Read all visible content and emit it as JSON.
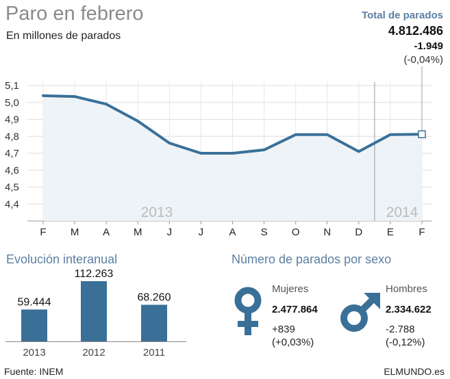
{
  "header": {
    "title": "Paro en febrero",
    "subtitle": "En millones de parados"
  },
  "total": {
    "label": "Total de parados",
    "value": "4.812.486",
    "change": "-1.949",
    "change_pct": "(-0,04%)"
  },
  "colors": {
    "line": "#3a7098",
    "area": "#eef3f7",
    "bar": "#3a7098",
    "accent_text": "#5c7fa3",
    "icon": "#3a7098"
  },
  "chart_data": [
    {
      "type": "line",
      "title": "Paro en febrero",
      "ylabel": "En millones de parados",
      "x": [
        "F",
        "M",
        "A",
        "M",
        "J",
        "J",
        "A",
        "S",
        "O",
        "N",
        "D",
        "E",
        "F"
      ],
      "y_ticks": [
        "5,1",
        "5,0",
        "4,9",
        "4,8",
        "4,7",
        "4,6",
        "4,5",
        "4,4"
      ],
      "ylim": [
        4.3,
        5.1
      ],
      "year_labels": [
        "2013",
        "2014"
      ],
      "series": [
        {
          "values": [
            5.04,
            5.035,
            4.99,
            4.89,
            4.76,
            4.7,
            4.7,
            4.72,
            4.81,
            4.81,
            4.71,
            4.81,
            4.812
          ]
        }
      ],
      "grid": true
    },
    {
      "type": "bar",
      "title": "Evolución interanual",
      "categories": [
        "2013",
        "2012",
        "2011"
      ],
      "values": [
        59444,
        112263,
        68260
      ],
      "value_labels": [
        "59.444",
        "112.263",
        "68.260"
      ]
    }
  ],
  "by_sex": {
    "title": "Número de parados por sexo",
    "women": {
      "label": "Mujeres",
      "value": "2.477.864",
      "change": "+839",
      "change_pct": "(+0,03%)"
    },
    "men": {
      "label": "Hombres",
      "value": "2.334.622",
      "change": "-2.788",
      "change_pct": "(-0,12%)"
    }
  },
  "footer": {
    "source": "Fuente: INEM",
    "brand": "ELMUNDO.es"
  }
}
